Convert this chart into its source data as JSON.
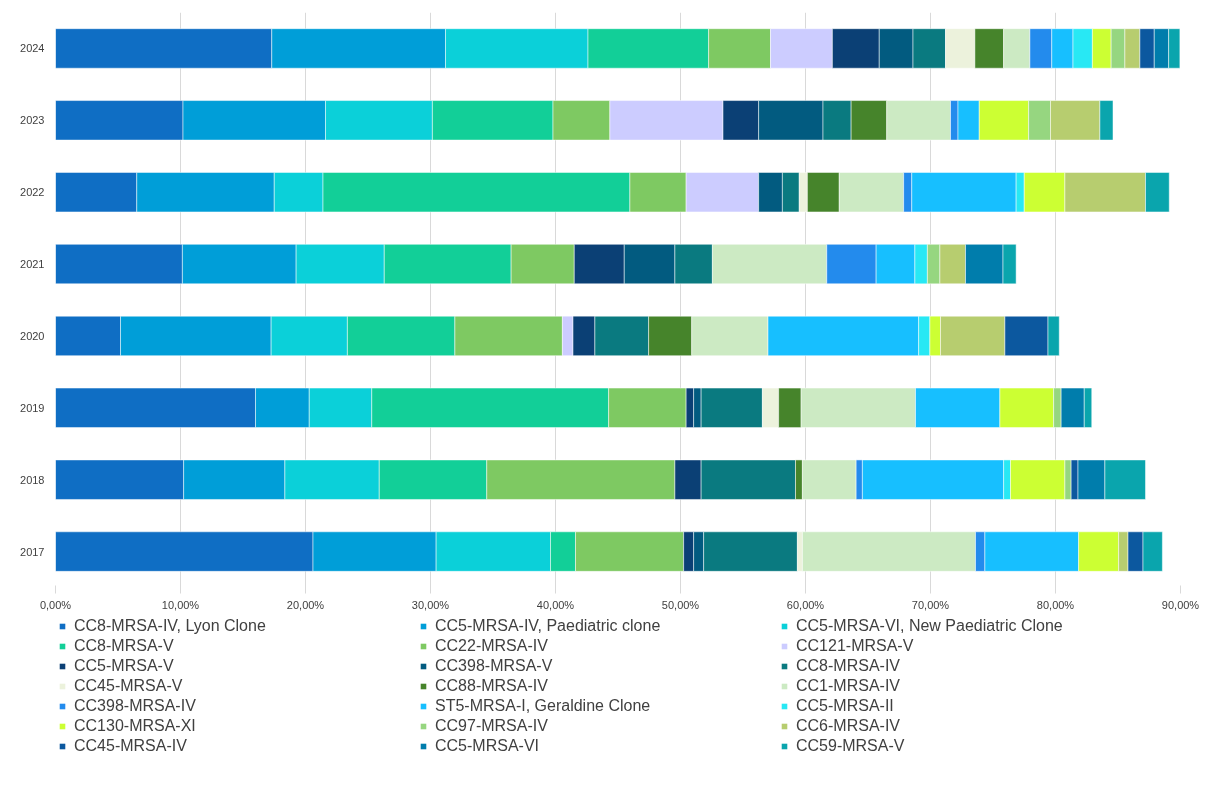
{
  "chart_data": {
    "type": "bar",
    "orientation": "horizontal",
    "stacked": true,
    "categories": [
      "2024",
      "2023",
      "2022",
      "2021",
      "2020",
      "2019",
      "2018",
      "2017"
    ],
    "xlim": [
      0,
      90
    ],
    "xticks": [
      {
        "value": 0,
        "label": "0,00%"
      },
      {
        "value": 10,
        "label": "10,00%"
      },
      {
        "value": 20,
        "label": "20,00%"
      },
      {
        "value": 30,
        "label": "30,00%"
      },
      {
        "value": 40,
        "label": "40,00%"
      },
      {
        "value": 50,
        "label": "50,00%"
      },
      {
        "value": 60,
        "label": "60,00%"
      },
      {
        "value": 70,
        "label": "70,00%"
      },
      {
        "value": 80,
        "label": "80,00%"
      },
      {
        "value": 90,
        "label": "90,00%"
      }
    ],
    "grid": "x",
    "legend": "bottom",
    "series": [
      {
        "name": "CC8-MRSA-IV, Lyon Clone",
        "color": "#0f6ec4",
        "values": [
          17.3,
          10.2,
          6.5,
          10.15,
          5.2,
          16.0,
          10.25,
          20.6
        ]
      },
      {
        "name": "CC5-MRSA-IV, Paediatric clone",
        "color": "#009ed8",
        "values": [
          13.9,
          11.4,
          11.0,
          9.1,
          12.05,
          4.3,
          8.1,
          9.85
        ]
      },
      {
        "name": "CC5-MRSA-VI, New Paediatric Clone",
        "color": "#0bd0d9",
        "values": [
          11.4,
          8.55,
          3.9,
          7.05,
          6.1,
          5.0,
          7.55,
          9.15
        ]
      },
      {
        "name": "CC8-MRSA-V",
        "color": "#12cf98",
        "values": [
          9.65,
          9.65,
          24.55,
          10.15,
          8.6,
          18.95,
          8.6,
          2.0
        ]
      },
      {
        "name": "CC22-MRSA-IV",
        "color": "#7ec962",
        "values": [
          4.95,
          4.55,
          4.5,
          5.05,
          8.6,
          6.2,
          15.05,
          8.65
        ]
      },
      {
        "name": "CC121-MRSA-V",
        "color": "#ccccff",
        "values": [
          4.95,
          9.05,
          5.8,
          null,
          0.85,
          null,
          null,
          null
        ]
      },
      {
        "name": "CC5-MRSA-V",
        "color": "#0b4075",
        "values": [
          3.75,
          2.85,
          null,
          4.0,
          1.75,
          0.6,
          2.1,
          0.8
        ]
      },
      {
        "name": "CC398-MRSA-V",
        "color": "#025b80",
        "values": [
          2.7,
          5.15,
          1.9,
          4.05,
          null,
          0.6,
          null,
          0.8
        ]
      },
      {
        "name": "CC8-MRSA-IV",
        "color": "#0a7a80",
        "values": [
          2.6,
          2.25,
          1.35,
          3.0,
          4.3,
          4.9,
          7.55,
          7.5
        ]
      },
      {
        "name": "CC45-MRSA-V",
        "color": "#ecf2dc",
        "values": [
          2.35,
          null,
          0.65,
          null,
          null,
          1.3,
          null,
          0.4
        ]
      },
      {
        "name": "CC88-MRSA-IV",
        "color": "#46842b",
        "values": [
          2.3,
          2.85,
          2.55,
          null,
          3.45,
          1.8,
          0.55,
          null
        ]
      },
      {
        "name": "CC1-MRSA-IV",
        "color": "#cceac3",
        "values": [
          2.1,
          5.1,
          5.15,
          9.15,
          6.1,
          9.15,
          4.3,
          13.85
        ]
      },
      {
        "name": "CC398-MRSA-IV",
        "color": "#238bed",
        "values": [
          1.75,
          0.6,
          0.65,
          3.95,
          null,
          null,
          0.5,
          0.75
        ]
      },
      {
        "name": "ST5-MRSA-I, Geraldine Clone",
        "color": "#17bfff",
        "values": [
          1.7,
          1.7,
          8.35,
          3.1,
          12.05,
          6.75,
          11.3,
          7.5
        ]
      },
      {
        "name": "CC5-MRSA-II",
        "color": "#28e8f4",
        "values": [
          1.55,
          null,
          0.65,
          1.0,
          0.9,
          null,
          0.55,
          null
        ]
      },
      {
        "name": "CC130-MRSA-XI",
        "color": "#ccff33",
        "values": [
          1.5,
          3.95,
          3.25,
          null,
          0.85,
          4.3,
          4.35,
          3.2
        ]
      },
      {
        "name": "CC97-MRSA-IV",
        "color": "#96d680",
        "values": [
          1.1,
          1.75,
          null,
          1.0,
          null,
          0.6,
          0.5,
          null
        ]
      },
      {
        "name": "CC6-MRSA-IV",
        "color": "#b7cd6f",
        "values": [
          1.2,
          3.95,
          6.45,
          2.05,
          5.15,
          null,
          null,
          0.75
        ]
      },
      {
        "name": "CC45-MRSA-IV",
        "color": "#0c589f",
        "values": [
          1.15,
          null,
          null,
          null,
          3.45,
          null,
          0.55,
          1.2
        ]
      },
      {
        "name": "CC5-MRSA-VI",
        "color": "#007dac",
        "values": [
          1.15,
          null,
          null,
          3.0,
          null,
          1.85,
          2.15,
          null
        ]
      },
      {
        "name": "CC59-MRSA-V",
        "color": "#0aa5ad",
        "values": [
          0.9,
          1.05,
          1.9,
          1.05,
          0.9,
          0.6,
          3.25,
          1.55
        ]
      }
    ]
  }
}
